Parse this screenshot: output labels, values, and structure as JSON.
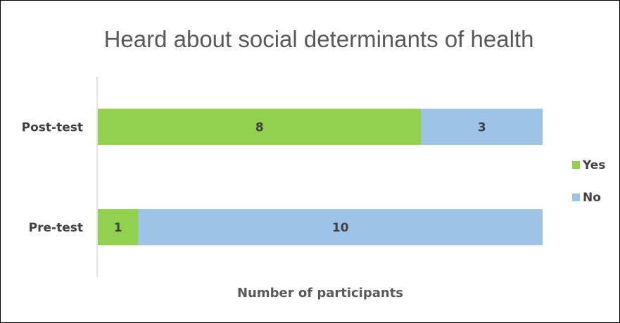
{
  "chart_data": {
    "type": "bar",
    "orientation": "horizontal",
    "stacked": true,
    "title": "Heard about social determinants of health",
    "xlabel": "Number of participants",
    "ylabel": "",
    "categories": [
      "Post-test",
      "Pre-test"
    ],
    "series": [
      {
        "name": "Yes",
        "values": [
          8,
          1
        ],
        "color": "#92D050"
      },
      {
        "name": "No",
        "values": [
          3,
          10
        ],
        "color": "#9DC3E6"
      }
    ],
    "xlim": [
      0,
      11
    ],
    "grid": false,
    "legend": "right",
    "data_labels": true
  }
}
